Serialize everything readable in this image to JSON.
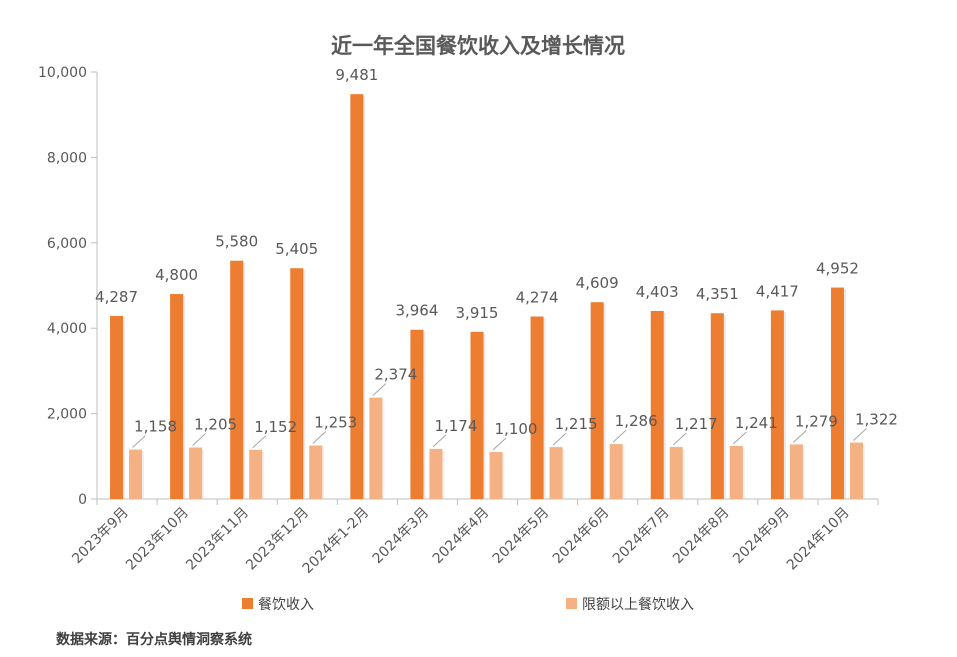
{
  "chart_data": {
    "type": "bar",
    "title": "近一年全国餐饮收入及增长情况",
    "categories": [
      "2023年9月",
      "2023年10月",
      "2023年11月",
      "2023年12月",
      "2024年1-2月",
      "2024年3月",
      "2024年4月",
      "2024年5月",
      "2024年6月",
      "2024年7月",
      "2024年8月",
      "2024年9月",
      "2024年10月"
    ],
    "series": [
      {
        "name": "餐饮收入",
        "color": "#ED7D31",
        "values": [
          4287,
          4800,
          5580,
          5405,
          9481,
          3964,
          3915,
          4274,
          4609,
          4403,
          4351,
          4417,
          4952
        ],
        "labels": [
          "4,287",
          "4,800",
          "5,580",
          "5,405",
          "9,481",
          "3,964",
          "3,915",
          "4,274",
          "4,609",
          "4,403",
          "4,351",
          "4,417",
          "4,952"
        ]
      },
      {
        "name": "限额以上餐饮收入",
        "color": "#F4B183",
        "values": [
          1158,
          1205,
          1152,
          1253,
          2374,
          1174,
          1100,
          1215,
          1286,
          1217,
          1241,
          1279,
          1322
        ],
        "labels": [
          "1,158",
          "1,205",
          "1,152",
          "1,253",
          "2,374",
          "1,174",
          "1,100",
          "1,215",
          "1,286",
          "1,217",
          "1,241",
          "1,279",
          "1,322"
        ]
      }
    ],
    "ylim": [
      0,
      10000
    ],
    "yticks": [
      0,
      2000,
      4000,
      6000,
      8000,
      10000
    ],
    "ytick_labels": [
      "0",
      "2,000",
      "4,000",
      "6,000",
      "8,000",
      "10,000"
    ],
    "legend_position": "bottom",
    "grid": false
  },
  "source_note": "数据来源：百分点舆情洞察系统"
}
